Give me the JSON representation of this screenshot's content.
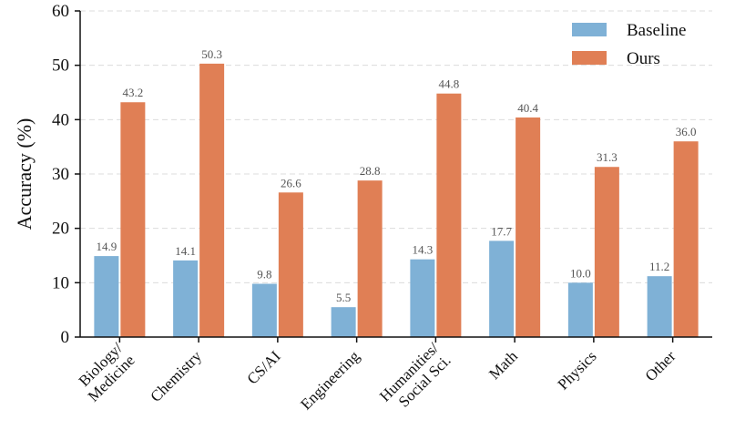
{
  "chart_data": {
    "type": "bar",
    "title": "",
    "xlabel": "",
    "ylabel": "Accuracy (%)",
    "ylim": [
      0,
      60
    ],
    "yticks": [
      0,
      10,
      20,
      30,
      40,
      50,
      60
    ],
    "grid": "horizontal dashed",
    "legend_position": "top-right",
    "categories": [
      [
        "Biology/",
        "Medicine"
      ],
      [
        "Chemistry"
      ],
      [
        "CS/AI"
      ],
      [
        "Engineering"
      ],
      [
        "Humanities/",
        "Social Sci."
      ],
      [
        "Math"
      ],
      [
        "Physics"
      ],
      [
        "Other"
      ]
    ],
    "series": [
      {
        "name": "Baseline",
        "color": "#7fb1d6",
        "values": [
          14.9,
          14.1,
          9.8,
          5.5,
          14.3,
          17.7,
          10.0,
          11.2
        ],
        "labels": [
          "14.9",
          "14.1",
          "9.8",
          "5.5",
          "14.3",
          "17.7",
          "10.0",
          "11.2"
        ]
      },
      {
        "name": "Ours",
        "color": "#e07f55",
        "values": [
          43.2,
          50.3,
          26.6,
          28.8,
          44.8,
          40.4,
          31.3,
          36.0
        ],
        "labels": [
          "43.2",
          "50.3",
          "26.6",
          "28.8",
          "44.8",
          "40.4",
          "31.3",
          "36.0"
        ]
      }
    ]
  }
}
